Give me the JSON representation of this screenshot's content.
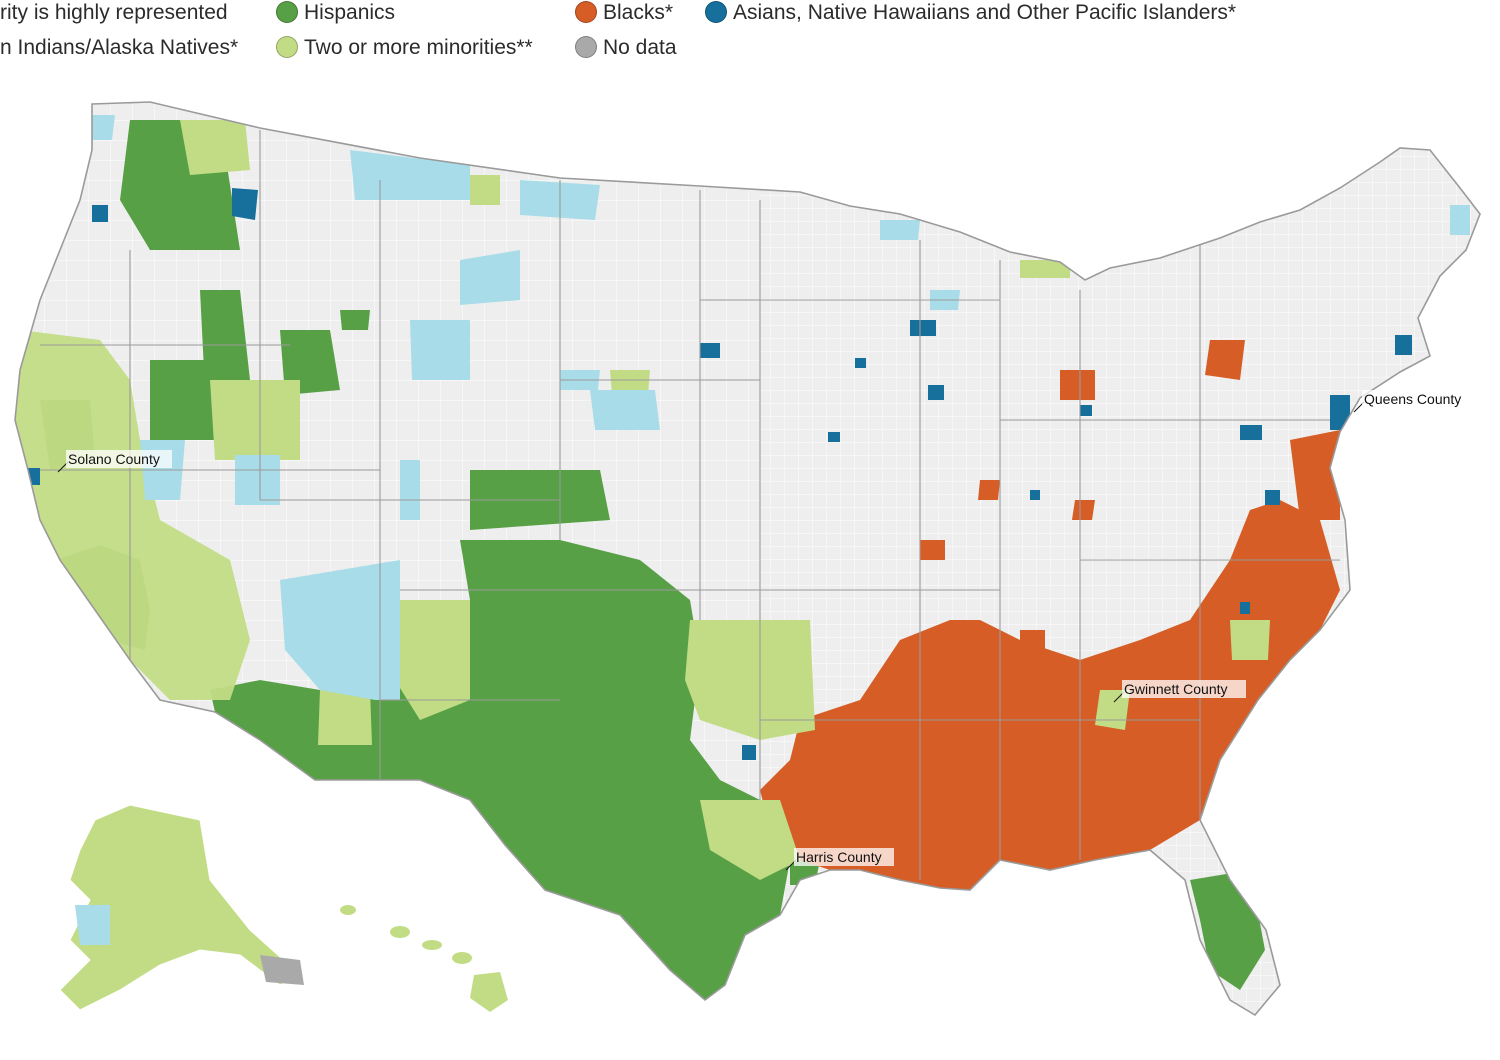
{
  "legend": {
    "items": [
      {
        "id": "highly",
        "label": "rity is highly represented",
        "swatch": false
      },
      {
        "id": "hispanics",
        "label": "Hispanics",
        "color": "#58a045",
        "swatch": true
      },
      {
        "id": "blacks",
        "label": "Blacks*",
        "color": "#d65d26",
        "swatch": true
      },
      {
        "id": "asians",
        "label": "Asians, Native  Hawaiians and Other Pacific Islanders*",
        "color": "#176f9c",
        "swatch": true
      },
      {
        "id": "aian",
        "label": "n Indians/Alaska Natives*",
        "color": "#a8dce8",
        "swatch": false
      },
      {
        "id": "two",
        "label": "Two or more minorities**",
        "color": "#c2dc85",
        "swatch": true
      },
      {
        "id": "nodata",
        "label": "No data",
        "color": "#a9a9a9",
        "swatch": true
      }
    ]
  },
  "colors": {
    "base": "#eeeeee",
    "border": "#9a9a9a",
    "hispanics": "#58a045",
    "blacks": "#d65d26",
    "asians": "#176f9c",
    "aian": "#a8dce8",
    "two": "#c2dc85",
    "nodata": "#a9a9a9"
  },
  "callouts": {
    "solano": "Solano County",
    "queens": "Queens County",
    "gwinnett": "Gwinnett County",
    "harris": "Harris County"
  }
}
